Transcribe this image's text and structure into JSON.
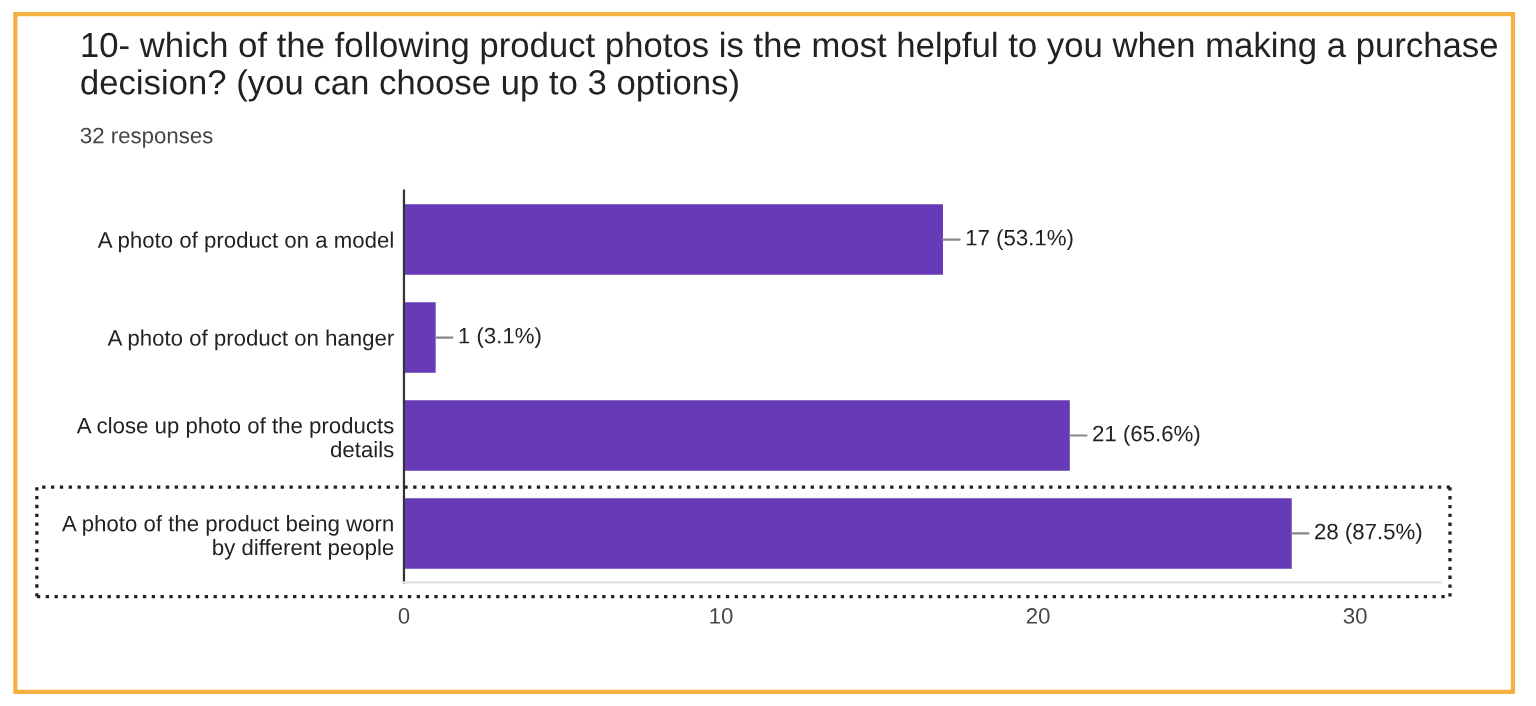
{
  "chart_data": {
    "type": "bar",
    "orientation": "horizontal",
    "title": "10- which of the following product photos is the most helpful to you when making a purchase decision? (you can choose up to 3 options)",
    "subtitle": "32 responses",
    "categories": [
      "A photo of product on a model",
      "A photo of product on hanger",
      "A close up photo of the products details",
      "A photo of the product being worn by different people"
    ],
    "values": [
      17,
      1,
      21,
      28
    ],
    "value_labels": [
      "17 (53.1%)",
      "1 (3.1%)",
      "21 (65.6%)",
      "28 (87.5%)"
    ],
    "color": "#673ab7",
    "xlim": [
      0,
      32.7
    ],
    "xticks": [
      0,
      10,
      20,
      30
    ],
    "grid": false
  }
}
